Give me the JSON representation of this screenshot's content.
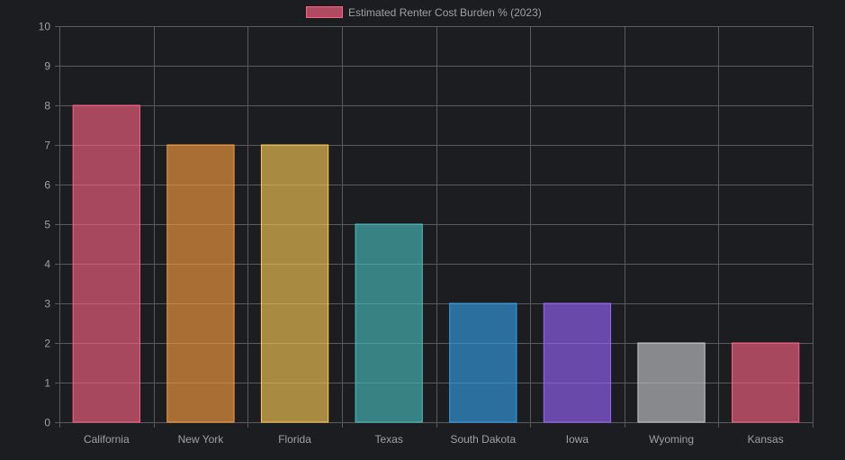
{
  "chart_data": {
    "type": "bar",
    "title": "",
    "legend": {
      "label": "Estimated Renter Cost Burden % (2023)",
      "placement": "top"
    },
    "categories": [
      "California",
      "New York",
      "Florida",
      "Texas",
      "South Dakota",
      "Iowa",
      "Wyoming",
      "Kansas"
    ],
    "series": [
      {
        "name": "Estimated Renter Cost Burden % (2023)",
        "values": [
          8,
          7,
          7,
          5,
          3,
          3,
          2,
          2
        ]
      }
    ],
    "colors": [
      "#ff6384",
      "#ff9f40",
      "#ffcd56",
      "#4bc0c0",
      "#36a2eb",
      "#9966ff",
      "#c9cbcf",
      "#ff6384"
    ],
    "yticks": [
      "0",
      "1",
      "2",
      "3",
      "4",
      "5",
      "6",
      "7",
      "8",
      "9",
      "10"
    ],
    "ylim": [
      0,
      10
    ],
    "grid": true,
    "xlabel": "",
    "ylabel": ""
  }
}
